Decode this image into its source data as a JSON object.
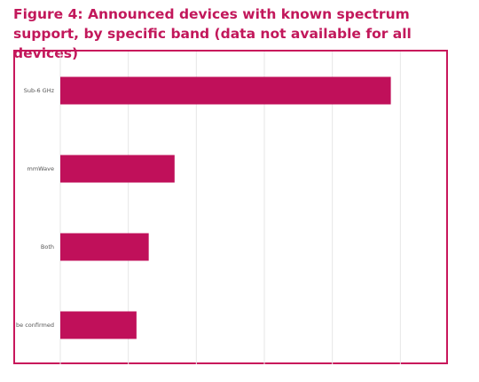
{
  "title": "Figure 4: Announced devices with known spectrum support, by specific band (data not available for all devices)",
  "colors": {
    "accent": "#c2185b",
    "bar": "#c0105a",
    "grid": "#e6e6e6"
  },
  "chart_data": {
    "type": "bar",
    "orientation": "horizontal",
    "categories": [
      "Sub-6 GHz",
      "mmWave",
      "Both",
      "be confirmed"
    ],
    "values": [
      243,
      84,
      65,
      56
    ],
    "xlim": [
      0,
      285
    ],
    "grid": true,
    "xlabel": "",
    "ylabel": ""
  }
}
